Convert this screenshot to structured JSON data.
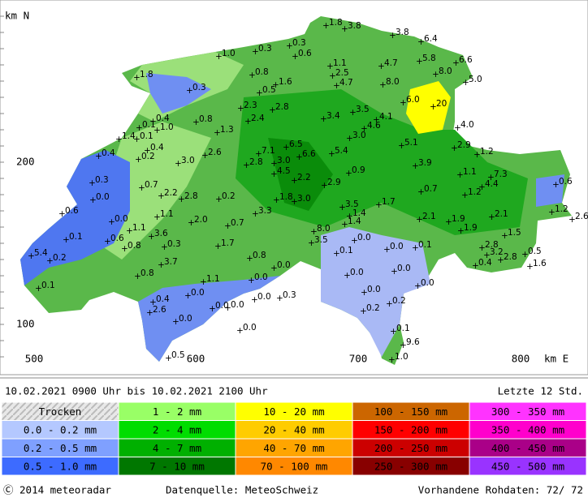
{
  "map": {
    "y_axis_unit": "km N",
    "x_axis_unit": "km E",
    "y_labels": [
      "200",
      "100"
    ],
    "x_labels": [
      "500",
      "600",
      "700",
      "800"
    ],
    "stations": [
      "1.8",
      "3.8",
      "3.8",
      "6.4",
      "0.3",
      "0.6",
      "0.3",
      "1.0",
      "1.1",
      "4.7",
      "5.8",
      "6.6",
      "1.8",
      "0.8",
      "2.5",
      "8.0",
      "5.0",
      "0.3",
      "0.5",
      "1.6",
      "4.7",
      "8.0",
      "6.0",
      "20",
      "2.3",
      "2.8",
      "3.5",
      "4.1",
      "0.4",
      "0.8",
      "2.4",
      "3.4",
      "4.6",
      "4.0",
      "0.1",
      "1.0",
      "1.3",
      "3.0",
      "1.4",
      "0.1",
      "5.1",
      "2.9",
      "0.4",
      "7.1",
      "6.5",
      "5.4",
      "0.4",
      "0.2",
      "2.6",
      "6.6",
      "1.2",
      "3.0",
      "2.8",
      "3.0",
      "3.9",
      "4.5",
      "0.9",
      "1.1",
      "7.3",
      "0.3",
      "2.2",
      "2.9",
      "4.4",
      "0.6",
      "0.7",
      "0.7",
      "1.2",
      "0.0",
      "2.2",
      "2.8",
      "0.2",
      "1.8",
      "3.0",
      "1.7",
      "3.5",
      "0.6",
      "1.1",
      "3.3",
      "1.4",
      "0.0",
      "2.0",
      "0.7",
      "1.4",
      "2.1",
      "1.9",
      "2.1",
      "1.2",
      "2.6",
      "1.1",
      "3.6",
      "8.0",
      "1.9",
      "1.5",
      "0.1",
      "0.6",
      "0.3",
      "1.7",
      "3.5",
      "0.0",
      "0.8",
      "0.0",
      "0.1",
      "2.8",
      "5.4",
      "0.2",
      "0.8",
      "0.1",
      "0.5",
      "3.2",
      "2.8",
      "3.7",
      "0.0",
      "0.4",
      "1.6",
      "0.8",
      "0.0",
      "0.0",
      "1.1",
      "0.0",
      "0.1",
      "0.0",
      "0.0",
      "0.0",
      "0.3",
      "0.0",
      "0.4",
      "0.2",
      "2.6",
      "0.0",
      "0.0",
      "0.2",
      "0.0",
      "0.0",
      "0.1",
      "9.6",
      "0.5",
      "1.0"
    ]
  },
  "header": {
    "period": "10.02.2021 0900 Uhr  bis  10.02.2021 2100 Uhr",
    "window": "Letzte 12 Std."
  },
  "legend": {
    "rows": [
      [
        "Trocken",
        "1 - 2 mm",
        "10 - 20 mm",
        "100 - 150 mm",
        "300 - 350 mm"
      ],
      [
        "0.0 - 0.2 mm",
        "2 - 4 mm",
        "20 - 40 mm",
        "150 - 200 mm",
        "350 - 400 mm"
      ],
      [
        "0.2 - 0.5 mm",
        "4 - 7 mm",
        "40 - 70 mm",
        "200 - 250 mm",
        "400 - 450 mm"
      ],
      [
        "0.5 - 1.0 mm",
        "7 - 10 mm",
        "70 - 100 mm",
        "250 - 300 mm",
        "450 - 500 mm"
      ]
    ]
  },
  "footer": {
    "copyright": "Ⓒ 2014 meteoradar",
    "source": "Datenquelle: MeteoSchweiz",
    "raw": "Vorhandene Rohdaten:  72/ 72"
  }
}
